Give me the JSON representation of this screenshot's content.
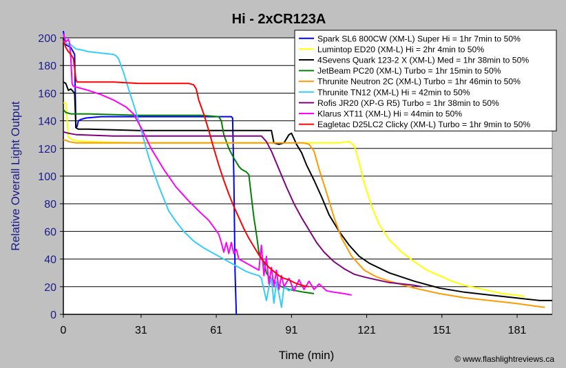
{
  "chart_data": {
    "type": "line",
    "title": "Hi - 2xCR123A",
    "xlabel": "Time (min)",
    "ylabel": "Relative Overall Light Output",
    "credit": "© www.flashlightreviews.ca",
    "xlim": [
      0,
      195
    ],
    "ylim": [
      0,
      200
    ],
    "xticks": [
      0,
      31,
      61,
      91,
      121,
      151,
      181
    ],
    "yticks": [
      0,
      20,
      40,
      60,
      80,
      100,
      120,
      140,
      160,
      180,
      200
    ],
    "grid": "horizontal",
    "legend_position": "top-right",
    "series": [
      {
        "name": "Spark SL6 800CW (XM-L) Super Hi = 1hr 7min to 50%",
        "color": "#0000ff",
        "points": [
          [
            0,
            205
          ],
          [
            0.5,
            198
          ],
          [
            1,
            195
          ],
          [
            3,
            193
          ],
          [
            4.5,
            188
          ],
          [
            5,
            135
          ],
          [
            5.5,
            136
          ],
          [
            6,
            140
          ],
          [
            7,
            141
          ],
          [
            9,
            142
          ],
          [
            15,
            143
          ],
          [
            30,
            143
          ],
          [
            50,
            143
          ],
          [
            60,
            143
          ],
          [
            65,
            143
          ],
          [
            67,
            143
          ],
          [
            67.5,
            142
          ],
          [
            68,
            100
          ],
          [
            68.5,
            30
          ],
          [
            69,
            0
          ]
        ]
      },
      {
        "name": "Lumintop ED20 (XM-L) Hi = 2hr 4min to 50%",
        "color": "#ffff00",
        "points": [
          [
            0,
            153
          ],
          [
            1,
            153
          ],
          [
            2,
            128
          ],
          [
            4,
            126
          ],
          [
            8,
            125
          ],
          [
            30,
            124
          ],
          [
            60,
            124
          ],
          [
            90,
            124
          ],
          [
            100,
            124
          ],
          [
            110,
            124
          ],
          [
            114,
            125
          ],
          [
            116,
            122
          ],
          [
            118,
            110
          ],
          [
            120,
            95
          ],
          [
            123,
            78
          ],
          [
            126,
            65
          ],
          [
            130,
            54
          ],
          [
            135,
            45
          ],
          [
            140,
            38
          ],
          [
            145,
            32
          ],
          [
            150,
            28
          ],
          [
            155,
            24
          ],
          [
            160,
            21
          ],
          [
            165,
            19
          ],
          [
            170,
            17
          ],
          [
            175,
            15
          ],
          [
            180,
            14
          ],
          [
            184,
            13
          ]
        ]
      },
      {
        "name": "4Sevens Quark 123-2 X (XM-L) Med = 1hr 38min to 50%",
        "color": "#000000",
        "points": [
          [
            0,
            168
          ],
          [
            1,
            167
          ],
          [
            2,
            162
          ],
          [
            3,
            163
          ],
          [
            4.5,
            160
          ],
          [
            5,
            135
          ],
          [
            6,
            134
          ],
          [
            10,
            134
          ],
          [
            30,
            133
          ],
          [
            60,
            133
          ],
          [
            80,
            133
          ],
          [
            83,
            133
          ],
          [
            84,
            124
          ],
          [
            86,
            123
          ],
          [
            88,
            124
          ],
          [
            89,
            127
          ],
          [
            90,
            130
          ],
          [
            91,
            131
          ],
          [
            92,
            127
          ],
          [
            93,
            123
          ],
          [
            95,
            117
          ],
          [
            97,
            108
          ],
          [
            100,
            97
          ],
          [
            103,
            85
          ],
          [
            106,
            72
          ],
          [
            110,
            60
          ],
          [
            114,
            50
          ],
          [
            118,
            42
          ],
          [
            122,
            37
          ],
          [
            130,
            30
          ],
          [
            140,
            24
          ],
          [
            150,
            19
          ],
          [
            160,
            16
          ],
          [
            170,
            14
          ],
          [
            180,
            12
          ],
          [
            190,
            10
          ],
          [
            195,
            10
          ]
        ]
      },
      {
        "name": "JetBeam PC20 (XM-L) Turbo = 1hr 15min to 50%",
        "color": "#008000",
        "points": [
          [
            0,
            148
          ],
          [
            1,
            146
          ],
          [
            3,
            145
          ],
          [
            10,
            145
          ],
          [
            30,
            144
          ],
          [
            55,
            144
          ],
          [
            62,
            143
          ],
          [
            63,
            140
          ],
          [
            64,
            130
          ],
          [
            65,
            125
          ],
          [
            66,
            120
          ],
          [
            68,
            113
          ],
          [
            70,
            107
          ],
          [
            71,
            105
          ],
          [
            72,
            104
          ],
          [
            73,
            103
          ],
          [
            74,
            101
          ],
          [
            75,
            85
          ],
          [
            76,
            70
          ],
          [
            77,
            58
          ],
          [
            78,
            45
          ],
          [
            79,
            40
          ],
          [
            80,
            38
          ],
          [
            81,
            30
          ],
          [
            82,
            27
          ],
          [
            83,
            26
          ],
          [
            85,
            22
          ],
          [
            87,
            20
          ],
          [
            90,
            18
          ],
          [
            93,
            17
          ],
          [
            96,
            16
          ],
          [
            100,
            15
          ]
        ]
      },
      {
        "name": "Thrunite Neutron 2C (XM-L) Turbo = 1hr 46min to 50%",
        "color": "#ff9900",
        "points": [
          [
            0,
            126
          ],
          [
            1,
            126
          ],
          [
            2,
            125
          ],
          [
            5,
            124
          ],
          [
            20,
            124
          ],
          [
            50,
            124
          ],
          [
            80,
            124
          ],
          [
            96,
            124
          ],
          [
            98,
            123
          ],
          [
            100,
            118
          ],
          [
            102,
            105
          ],
          [
            105,
            88
          ],
          [
            108,
            70
          ],
          [
            111,
            55
          ],
          [
            115,
            42
          ],
          [
            120,
            32
          ],
          [
            125,
            27
          ],
          [
            130,
            24
          ],
          [
            140,
            19
          ],
          [
            150,
            15
          ],
          [
            160,
            12
          ],
          [
            170,
            10
          ],
          [
            180,
            8
          ],
          [
            188,
            6
          ],
          [
            192,
            5
          ]
        ]
      },
      {
        "name": "Thrunite TN12 (XM-L) Hi = 42min to 50%",
        "color": "#33ccff",
        "points": [
          [
            0,
            198
          ],
          [
            1,
            196
          ],
          [
            3,
            195
          ],
          [
            5,
            192
          ],
          [
            8,
            191
          ],
          [
            10,
            190
          ],
          [
            15,
            189
          ],
          [
            20,
            188
          ],
          [
            21,
            187
          ],
          [
            22,
            185
          ],
          [
            24,
            175
          ],
          [
            26,
            163
          ],
          [
            28,
            152
          ],
          [
            30,
            140
          ],
          [
            32,
            127
          ],
          [
            34,
            114
          ],
          [
            36,
            103
          ],
          [
            38,
            93
          ],
          [
            40,
            84
          ],
          [
            42,
            75
          ],
          [
            45,
            67
          ],
          [
            48,
            60
          ],
          [
            52,
            53
          ],
          [
            56,
            48
          ],
          [
            60,
            44
          ],
          [
            64,
            40
          ],
          [
            67,
            37
          ],
          [
            70,
            34
          ],
          [
            73,
            31
          ],
          [
            76,
            29
          ],
          [
            78,
            28
          ],
          [
            79,
            26
          ],
          [
            80,
            18
          ],
          [
            81,
            10
          ],
          [
            82,
            20
          ],
          [
            83,
            26
          ],
          [
            84,
            8
          ],
          [
            85,
            24
          ],
          [
            86,
            15
          ],
          [
            87,
            5
          ],
          [
            88,
            20
          ],
          [
            90,
            17
          ],
          [
            92,
            20
          ]
        ]
      },
      {
        "name": "Rofis JR20 (XP-G R5) Turbo = 1hr 38min to 50%",
        "color": "#800080",
        "points": [
          [
            0,
            132
          ],
          [
            2,
            131
          ],
          [
            5,
            130
          ],
          [
            20,
            129
          ],
          [
            50,
            129
          ],
          [
            70,
            129
          ],
          [
            79,
            129
          ],
          [
            81,
            125
          ],
          [
            83,
            118
          ],
          [
            86,
            105
          ],
          [
            89,
            92
          ],
          [
            92,
            80
          ],
          [
            95,
            70
          ],
          [
            98,
            61
          ],
          [
            101,
            52
          ],
          [
            104,
            45
          ],
          [
            108,
            38
          ],
          [
            112,
            33
          ],
          [
            116,
            29
          ],
          [
            120,
            27
          ],
          [
            125,
            25
          ],
          [
            130,
            23
          ],
          [
            135,
            22
          ],
          [
            140,
            21
          ],
          [
            143,
            20
          ]
        ]
      },
      {
        "name": "Klarus XT11 (XM-L) Hi = 44min to 50%",
        "color": "#ff00ff",
        "points": [
          [
            0,
            203
          ],
          [
            0.5,
            200
          ],
          [
            1,
            197
          ],
          [
            2,
            199
          ],
          [
            2.5,
            196
          ],
          [
            3,
            185
          ],
          [
            3.5,
            167
          ],
          [
            4,
            165
          ],
          [
            6,
            164
          ],
          [
            10,
            162
          ],
          [
            15,
            159
          ],
          [
            20,
            155
          ],
          [
            25,
            150
          ],
          [
            28,
            145
          ],
          [
            31,
            135
          ],
          [
            35,
            120
          ],
          [
            40,
            105
          ],
          [
            45,
            92
          ],
          [
            50,
            82
          ],
          [
            55,
            73
          ],
          [
            58,
            68
          ],
          [
            60,
            63
          ],
          [
            62,
            58
          ],
          [
            63,
            52
          ],
          [
            64,
            45
          ],
          [
            65,
            52
          ],
          [
            66,
            44
          ],
          [
            67,
            52
          ],
          [
            68,
            44
          ],
          [
            69,
            47
          ],
          [
            70,
            40
          ],
          [
            72,
            38
          ],
          [
            74,
            36
          ],
          [
            76,
            34
          ],
          [
            78,
            32
          ],
          [
            79,
            50
          ],
          [
            80,
            28
          ],
          [
            81,
            42
          ],
          [
            82,
            22
          ],
          [
            83,
            34
          ],
          [
            84,
            20
          ],
          [
            85,
            32
          ],
          [
            86,
            18
          ],
          [
            87,
            28
          ],
          [
            88,
            20
          ],
          [
            90,
            26
          ],
          [
            92,
            17
          ],
          [
            94,
            25
          ],
          [
            96,
            18
          ],
          [
            98,
            24
          ],
          [
            100,
            18
          ],
          [
            102,
            22
          ],
          [
            105,
            17
          ],
          [
            108,
            16
          ],
          [
            112,
            15
          ],
          [
            115,
            14
          ]
        ]
      },
      {
        "name": "Eagletac D25LC2 Clicky (XM-L) Turbo = 1hr 9min to 50%",
        "color": "#ff0000",
        "points": [
          [
            0,
            198
          ],
          [
            1,
            193
          ],
          [
            2,
            190
          ],
          [
            3,
            188
          ],
          [
            4,
            185
          ],
          [
            4.5,
            178
          ],
          [
            5,
            170
          ],
          [
            5.5,
            168
          ],
          [
            6,
            168
          ],
          [
            10,
            168
          ],
          [
            20,
            168
          ],
          [
            30,
            167
          ],
          [
            40,
            167
          ],
          [
            50,
            167
          ],
          [
            52,
            166
          ],
          [
            53,
            163
          ],
          [
            54,
            155
          ],
          [
            56,
            145
          ],
          [
            58,
            133
          ],
          [
            60,
            120
          ],
          [
            62,
            108
          ],
          [
            64,
            97
          ],
          [
            66,
            87
          ],
          [
            68,
            78
          ],
          [
            70,
            70
          ],
          [
            72,
            62
          ],
          [
            74,
            55
          ],
          [
            76,
            49
          ],
          [
            78,
            43
          ],
          [
            80,
            38
          ],
          [
            82,
            34
          ],
          [
            84,
            31
          ],
          [
            86,
            28
          ],
          [
            88,
            26
          ],
          [
            90,
            25
          ],
          [
            92,
            23
          ],
          [
            95,
            21
          ],
          [
            98,
            20
          ]
        ]
      }
    ]
  }
}
